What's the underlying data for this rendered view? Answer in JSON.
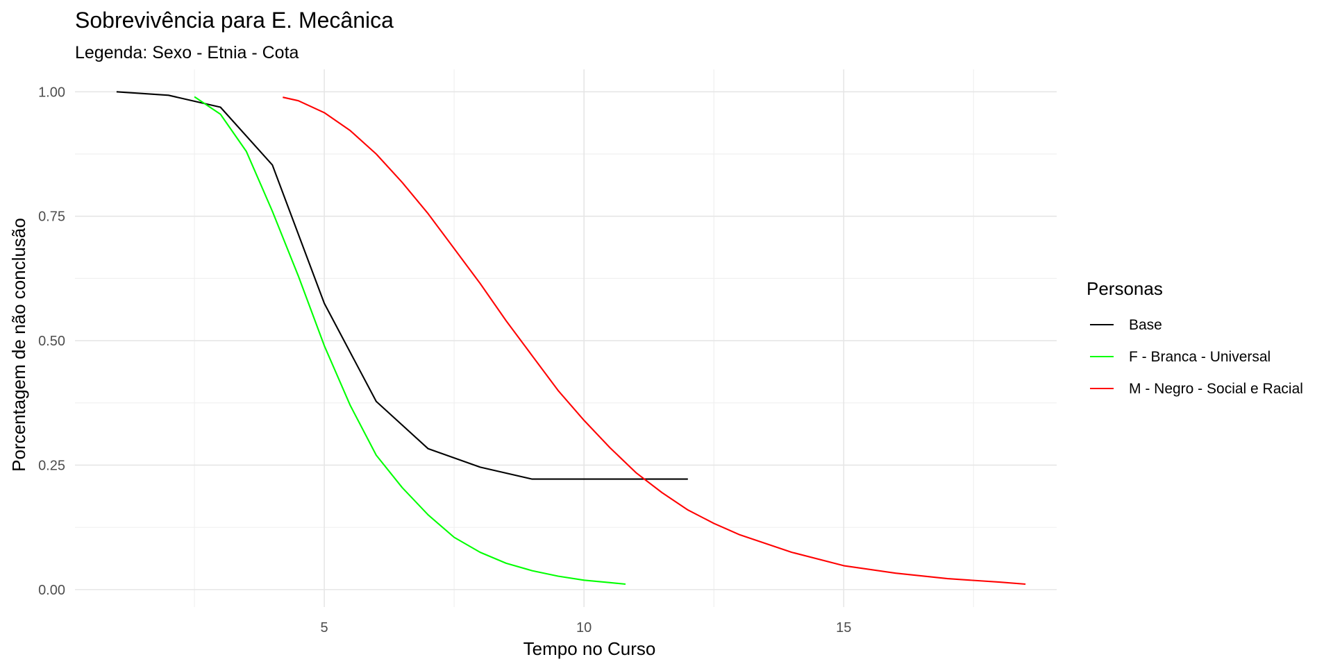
{
  "chart_data": {
    "type": "line",
    "title": "Sobrevivência para E. Mecânica",
    "subtitle": "Legenda: Sexo - Etnia - Cota",
    "xlabel": "Tempo no Curso",
    "ylabel": "Porcentagem de não conclusão",
    "xlim": [
      0.2,
      19.1
    ],
    "ylim": [
      -0.035,
      1.045
    ],
    "x_ticks": [
      5,
      10,
      15
    ],
    "x_tick_labels": [
      "5",
      "10",
      "15"
    ],
    "x_minor": [
      2.5,
      7.5,
      12.5,
      17.5
    ],
    "y_ticks": [
      0,
      0.25,
      0.5,
      0.75,
      1
    ],
    "y_tick_labels": [
      "0.00",
      "0.25",
      "0.50",
      "0.75",
      "1.00"
    ],
    "y_minor": [
      0.125,
      0.375,
      0.625,
      0.875
    ],
    "grid": true,
    "legend": {
      "title": "Personas",
      "position": "right"
    },
    "series": [
      {
        "name": "Base",
        "color": "#000000",
        "x": [
          1,
          2,
          3,
          4,
          5,
          6,
          7,
          8,
          9,
          10,
          11,
          12
        ],
        "y": [
          1.0,
          0.993,
          0.969,
          0.853,
          0.575,
          0.378,
          0.283,
          0.246,
          0.222,
          0.222,
          0.222,
          0.222
        ]
      },
      {
        "name": "F - Branca - Universal",
        "color": "#00ff00",
        "x": [
          2.5,
          3,
          3.5,
          4,
          4.5,
          5,
          5.5,
          6,
          6.5,
          7,
          7.5,
          8,
          8.5,
          9,
          9.5,
          10,
          10.5,
          10.8
        ],
        "y": [
          0.99,
          0.955,
          0.88,
          0.76,
          0.63,
          0.49,
          0.37,
          0.27,
          0.205,
          0.15,
          0.105,
          0.075,
          0.053,
          0.038,
          0.027,
          0.019,
          0.014,
          0.011
        ]
      },
      {
        "name": "M - Negro - Social e Racial",
        "color": "#ff0000",
        "x": [
          4.2,
          4.5,
          5,
          5.5,
          6,
          6.5,
          7,
          7.5,
          8,
          8.5,
          9,
          9.5,
          10,
          10.5,
          11,
          11.5,
          12,
          12.5,
          13,
          14,
          15,
          16,
          17,
          18,
          18.5
        ],
        "y": [
          0.989,
          0.982,
          0.958,
          0.922,
          0.875,
          0.818,
          0.755,
          0.685,
          0.615,
          0.54,
          0.47,
          0.4,
          0.34,
          0.285,
          0.235,
          0.195,
          0.16,
          0.133,
          0.11,
          0.075,
          0.048,
          0.033,
          0.022,
          0.015,
          0.011
        ]
      }
    ]
  }
}
